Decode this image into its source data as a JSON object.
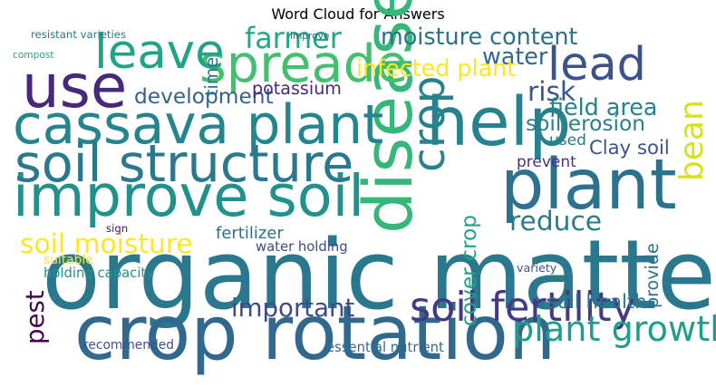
{
  "chart_data": {
    "type": "wordcloud",
    "title": "Word Cloud for Answers",
    "colormap": "viridis",
    "background": "#ffffff",
    "words": [
      {
        "text": "organic matter",
        "weight": 1.0,
        "color": "#2a788e"
      },
      {
        "text": "crop rotation",
        "weight": 0.78,
        "color": "#31688e"
      },
      {
        "text": "plant",
        "weight": 0.72,
        "color": "#2c728e"
      },
      {
        "text": "help",
        "weight": 0.7,
        "color": "#26828e"
      },
      {
        "text": "disease",
        "weight": 0.7,
        "color": "#35b779"
      },
      {
        "text": "use",
        "weight": 0.62,
        "color": "#482878"
      },
      {
        "text": "improve soil",
        "weight": 0.6,
        "color": "#21918c"
      },
      {
        "text": "cassava plant",
        "weight": 0.56,
        "color": "#25858e"
      },
      {
        "text": "soil structure",
        "weight": 0.54,
        "color": "#2a788e"
      },
      {
        "text": "spreade",
        "weight": 0.54,
        "color": "#44bf70"
      },
      {
        "text": "leave",
        "weight": 0.5,
        "color": "#20a486"
      },
      {
        "text": "lead",
        "weight": 0.48,
        "color": "#3b528b"
      },
      {
        "text": "crop",
        "weight": 0.46,
        "color": "#26828e"
      },
      {
        "text": "soil fertility",
        "weight": 0.42,
        "color": "#443983"
      },
      {
        "text": "plant growth",
        "weight": 0.36,
        "color": "#1f9e89"
      },
      {
        "text": "bean",
        "weight": 0.34,
        "color": "#d8e219"
      },
      {
        "text": "farmer",
        "weight": 0.3,
        "color": "#22a884"
      },
      {
        "text": "soil moisture",
        "weight": 0.28,
        "color": "#fde725"
      },
      {
        "text": "reduce",
        "weight": 0.28,
        "color": "#287c8e"
      },
      {
        "text": "risk",
        "weight": 0.28,
        "color": "#39568c"
      },
      {
        "text": "pest",
        "weight": 0.26,
        "color": "#440154"
      },
      {
        "text": "important",
        "weight": 0.26,
        "color": "#3e4a89"
      },
      {
        "text": "water",
        "weight": 0.24,
        "color": "#31688e"
      },
      {
        "text": "moisture content",
        "weight": 0.24,
        "color": "#2d708e"
      },
      {
        "text": "infected plant",
        "weight": 0.24,
        "color": "#fde725"
      },
      {
        "text": "field area",
        "weight": 0.24,
        "color": "#26828e"
      },
      {
        "text": "development",
        "weight": 0.22,
        "color": "#33638d"
      },
      {
        "text": "soil erosion",
        "weight": 0.22,
        "color": "#277f8e"
      },
      {
        "text": "cover crop",
        "weight": 0.22,
        "color": "#20a486"
      },
      {
        "text": "Clay soil",
        "weight": 0.2,
        "color": "#3b528b"
      },
      {
        "text": "soil health",
        "weight": 0.2,
        "color": "#2a788e"
      },
      {
        "text": "provide",
        "weight": 0.18,
        "color": "#2c728e"
      },
      {
        "text": "potassium",
        "weight": 0.18,
        "color": "#482878"
      },
      {
        "text": "time",
        "weight": 0.18,
        "color": "#2c728e"
      },
      {
        "text": "fertilizer",
        "weight": 0.17,
        "color": "#2c728e"
      },
      {
        "text": "prevent",
        "weight": 0.16,
        "color": "#46327e"
      },
      {
        "text": "used",
        "weight": 0.16,
        "color": "#287c8e"
      },
      {
        "text": "holding capacity",
        "weight": 0.14,
        "color": "#21918c"
      },
      {
        "text": "essential nutrient",
        "weight": 0.14,
        "color": "#31688e"
      },
      {
        "text": "water holding",
        "weight": 0.14,
        "color": "#3e4a89"
      },
      {
        "text": "suitable",
        "weight": 0.13,
        "color": "#fde725"
      },
      {
        "text": "recommended",
        "weight": 0.13,
        "color": "#3b528b"
      },
      {
        "text": "variety",
        "weight": 0.12,
        "color": "#39568c"
      },
      {
        "text": "resistant varieties",
        "weight": 0.11,
        "color": "#2a788e"
      },
      {
        "text": "sign",
        "weight": 0.11,
        "color": "#471164"
      },
      {
        "text": "improve",
        "weight": 0.1,
        "color": "#34608d"
      },
      {
        "text": "compost",
        "weight": 0.1,
        "color": "#22a884"
      }
    ]
  }
}
